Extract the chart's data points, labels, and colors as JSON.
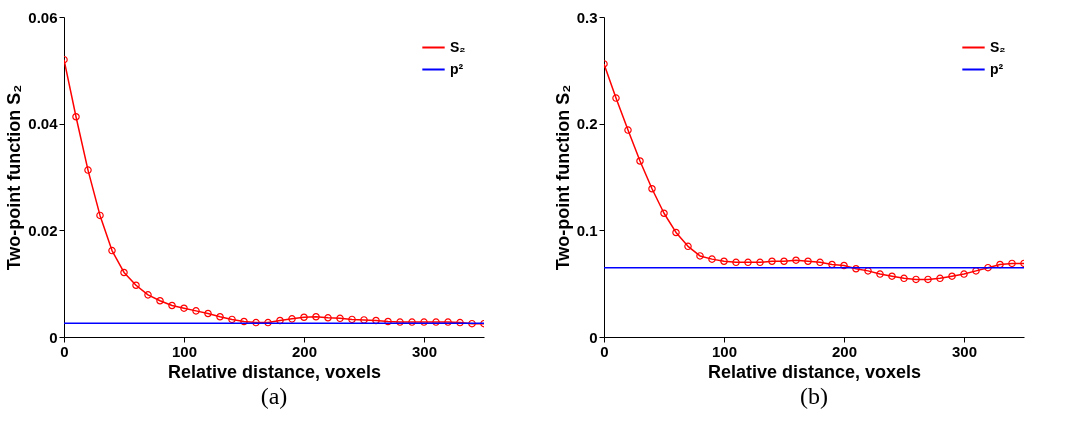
{
  "chart_data": [
    {
      "type": "line",
      "xlabel": "Relative distance, voxels",
      "ylabel": "Two-point function S₂",
      "annotations": [
        "(a)"
      ],
      "xlim": [
        0,
        350
      ],
      "xticks": [
        0,
        100,
        200,
        300
      ],
      "ylim": [
        0,
        0.06
      ],
      "yticks": [
        0,
        0.02,
        0.04,
        0.06
      ],
      "grid": false,
      "legend": "top right",
      "series": [
        {
          "name": "S₂",
          "color": "#ff0000",
          "marker": "circle",
          "x": [
            0,
            10,
            20,
            30,
            40,
            50,
            60,
            70,
            80,
            90,
            100,
            110,
            120,
            130,
            140,
            150,
            160,
            170,
            180,
            190,
            200,
            210,
            220,
            230,
            240,
            250,
            260,
            270,
            280,
            290,
            300,
            310,
            320,
            330,
            340,
            350
          ],
          "values": [
            0.052,
            0.0413,
            0.0313,
            0.0228,
            0.0162,
            0.0121,
            0.0097,
            0.0079,
            0.0068,
            0.0059,
            0.0054,
            0.0049,
            0.0044,
            0.0038,
            0.0033,
            0.0029,
            0.0027,
            0.0027,
            0.0031,
            0.0034,
            0.0037,
            0.0038,
            0.0036,
            0.0035,
            0.0033,
            0.0032,
            0.0031,
            0.0029,
            0.0028,
            0.0028,
            0.0028,
            0.0028,
            0.0028,
            0.0027,
            0.0025,
            0.0025
          ]
        },
        {
          "name": "p²",
          "color": "#0000ff",
          "marker": "none",
          "x": [
            0,
            350
          ],
          "values": [
            0.0026,
            0.0026
          ]
        }
      ]
    },
    {
      "type": "line",
      "xlabel": "Relative distance, voxels",
      "ylabel": "Two-point function S₂",
      "annotations": [
        "(b)"
      ],
      "xlim": [
        0,
        350
      ],
      "xticks": [
        0,
        100,
        200,
        300
      ],
      "ylim": [
        0,
        0.3
      ],
      "yticks": [
        0,
        0.1,
        0.2,
        0.3
      ],
      "grid": false,
      "legend": "top right",
      "series": [
        {
          "name": "S₂",
          "color": "#ff0000",
          "marker": "circle",
          "x": [
            0,
            10,
            20,
            30,
            40,
            50,
            60,
            70,
            80,
            90,
            100,
            110,
            120,
            130,
            140,
            150,
            160,
            170,
            180,
            190,
            200,
            210,
            220,
            230,
            240,
            250,
            260,
            270,
            280,
            290,
            300,
            310,
            320,
            330,
            340,
            350
          ],
          "values": [
            0.256,
            0.224,
            0.194,
            0.165,
            0.139,
            0.116,
            0.098,
            0.085,
            0.076,
            0.073,
            0.071,
            0.07,
            0.07,
            0.07,
            0.071,
            0.071,
            0.072,
            0.071,
            0.07,
            0.068,
            0.067,
            0.064,
            0.062,
            0.059,
            0.057,
            0.055,
            0.054,
            0.054,
            0.055,
            0.057,
            0.059,
            0.062,
            0.065,
            0.068,
            0.069,
            0.069
          ]
        },
        {
          "name": "p²",
          "color": "#0000ff",
          "marker": "none",
          "x": [
            0,
            350
          ],
          "values": [
            0.065,
            0.065
          ]
        }
      ]
    }
  ]
}
